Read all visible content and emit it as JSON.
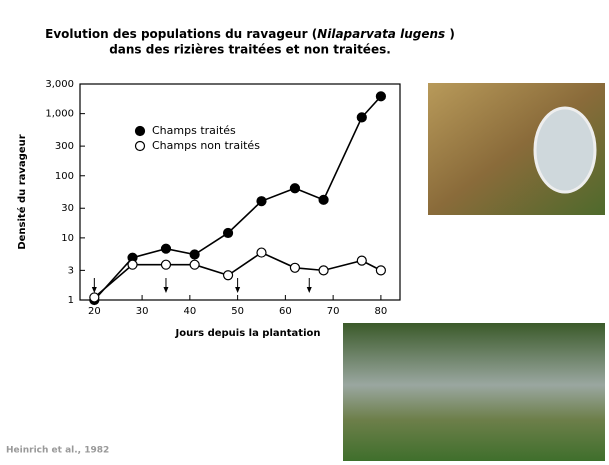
{
  "chart_data": {
    "type": "line",
    "title": {
      "line1_before": "Evolution des populations du ravageur (",
      "species": "Nilaparvata lugens",
      "line1_after": " )",
      "line2": "dans des rizières traitées et non traitées."
    },
    "x_label": "Jours depuis la plantation",
    "y_label": "Densité du ravageur",
    "source": "Heinrich et al., 1982",
    "x": [
      20,
      28,
      35,
      41,
      48,
      55,
      62,
      68,
      76,
      80
    ],
    "series": [
      {
        "name": "Champs traités",
        "color": "#000000",
        "marker": "filled",
        "values": [
          1,
          4.8,
          6.7,
          5.4,
          12,
          39,
          63,
          41,
          870,
          1900
        ]
      },
      {
        "name": "Champs non traités",
        "color": "#000000",
        "marker": "open",
        "values": [
          1.1,
          3.7,
          3.7,
          3.7,
          2.5,
          5.8,
          3.3,
          3,
          4.3,
          3
        ]
      }
    ],
    "arrows_x": [
      20,
      35,
      50,
      65
    ],
    "xlim": [
      17,
      84
    ],
    "xticks": [
      20,
      30,
      40,
      50,
      60,
      70,
      80
    ],
    "ylim": [
      1,
      3000
    ],
    "yticks": [
      1,
      3,
      10,
      30,
      100,
      300,
      {
        "value": 1000,
        "label": "1,000"
      },
      {
        "value": 3000,
        "label": "3,000"
      }
    ],
    "log_y": true,
    "grid": false
  }
}
